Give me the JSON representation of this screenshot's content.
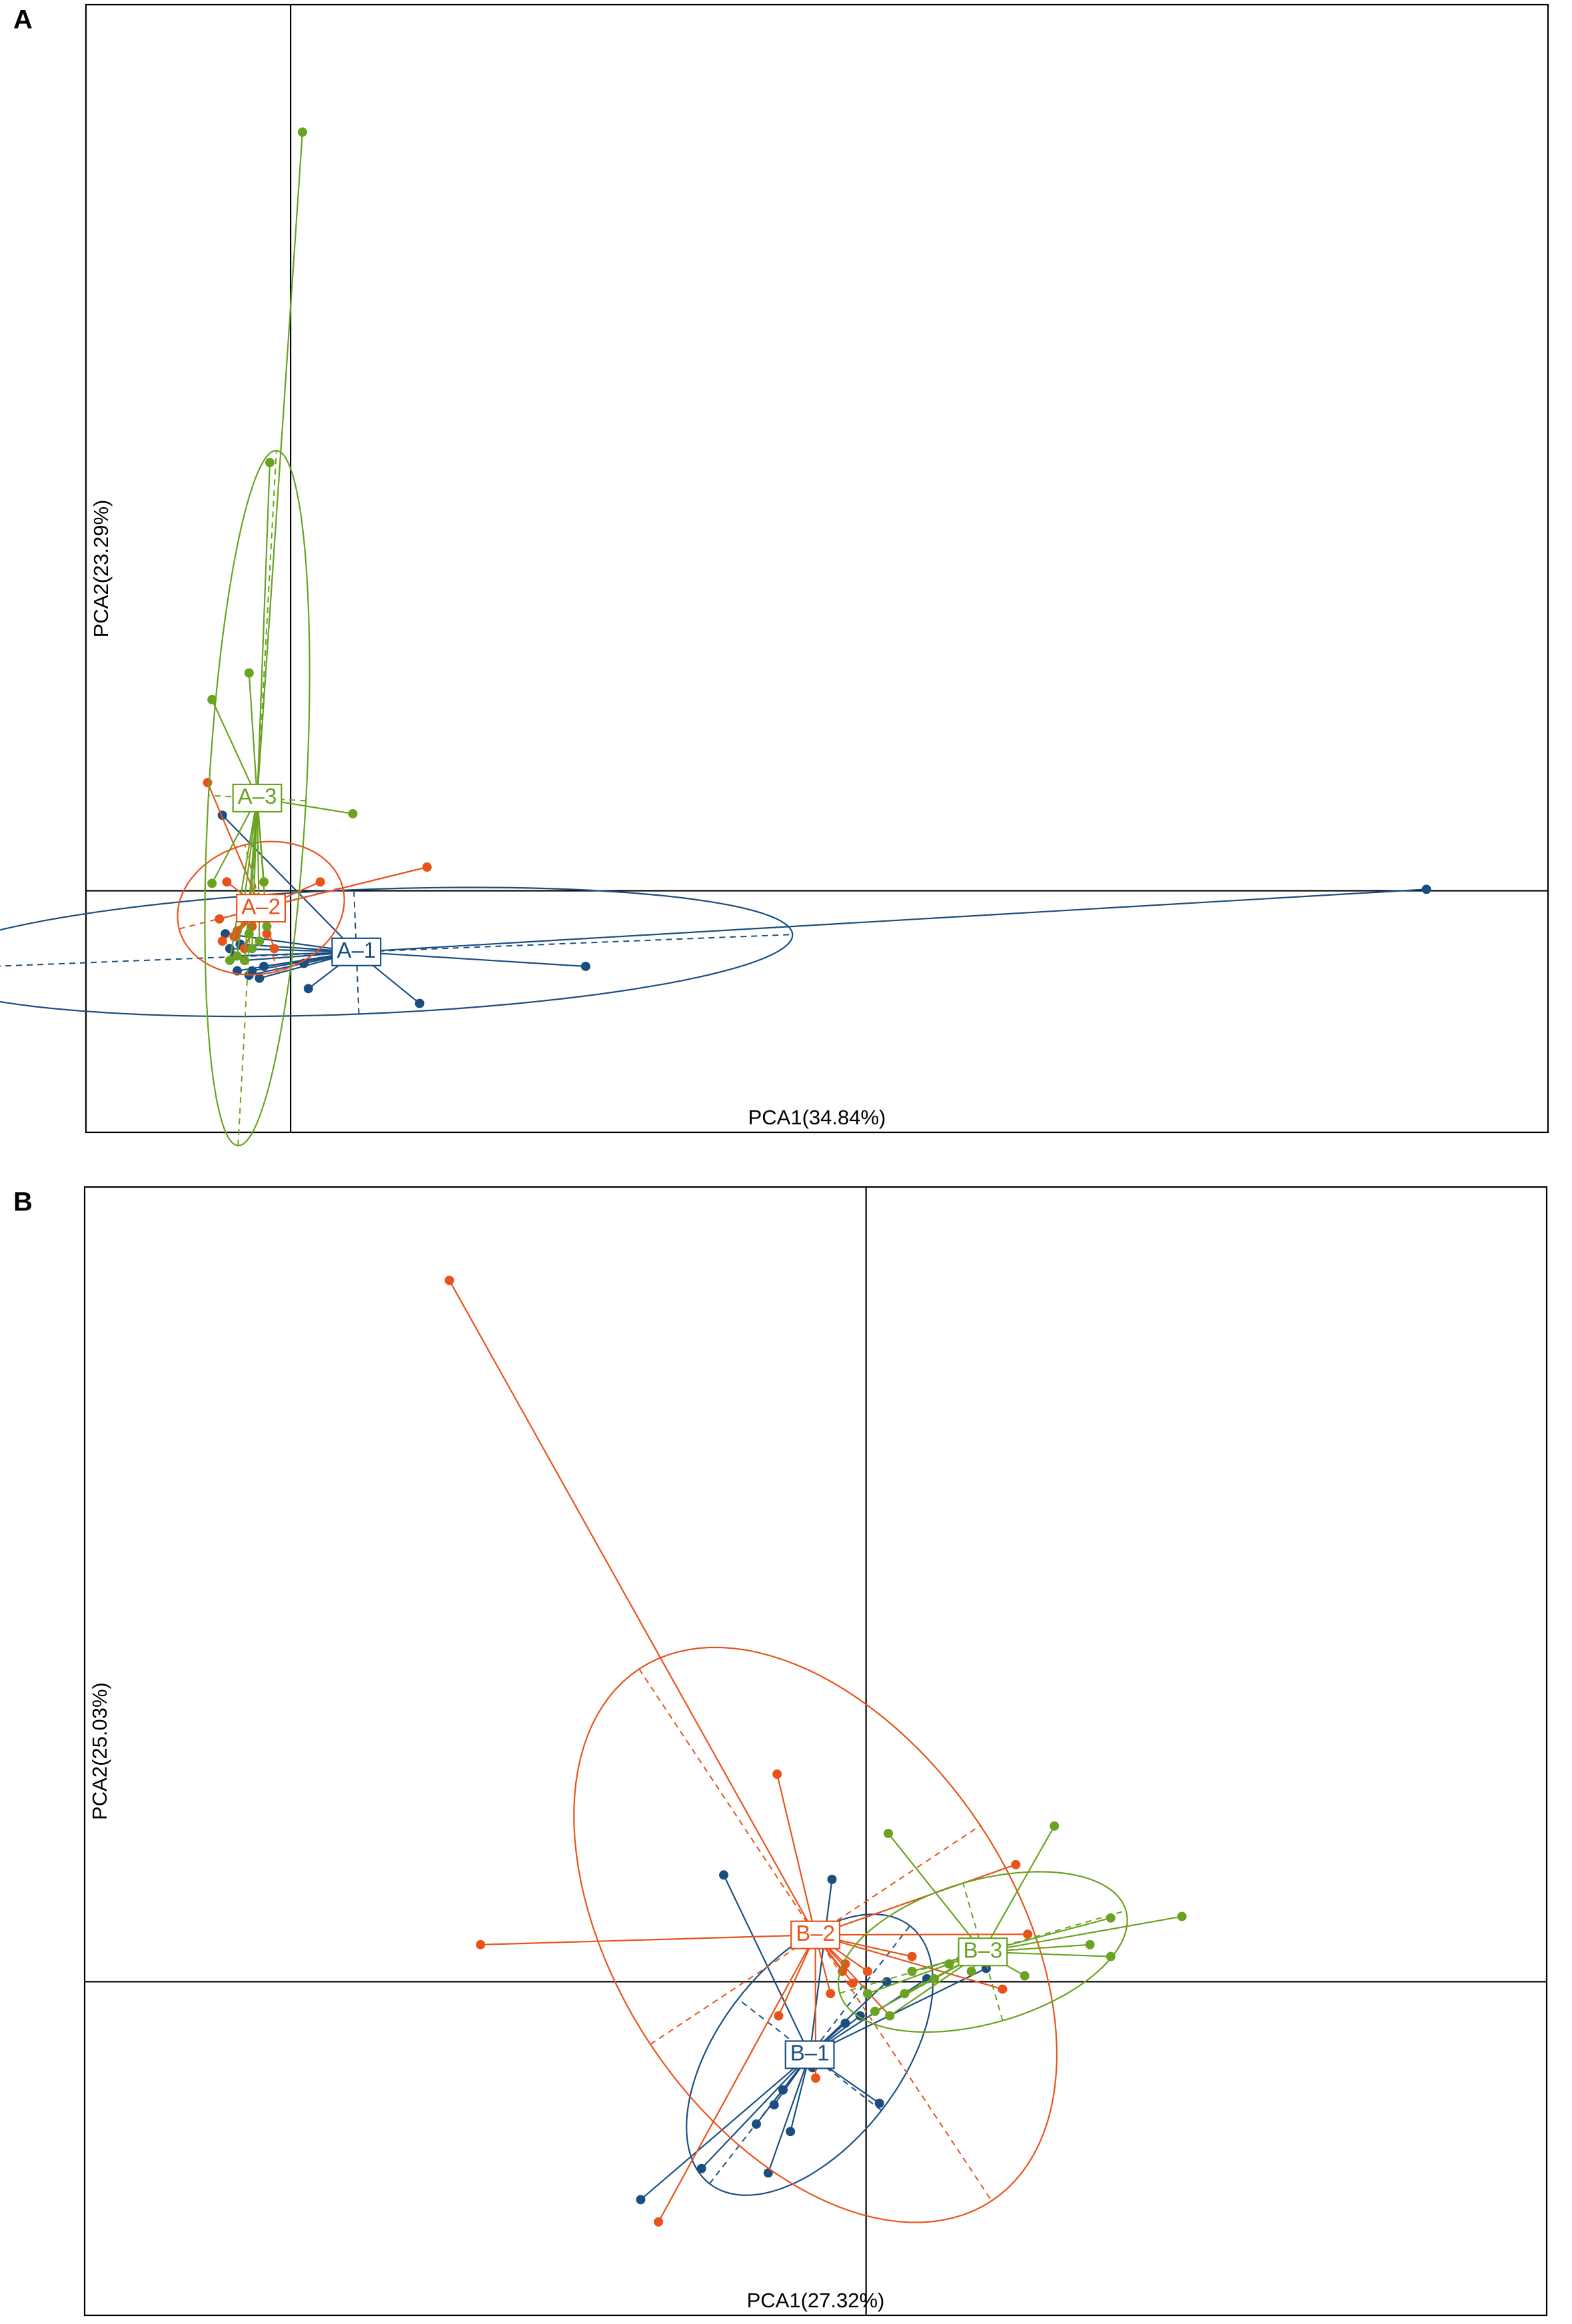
{
  "chart_data": [
    {
      "type": "scatter",
      "panel_label": "A",
      "xlabel": "PCA1(34.84%)",
      "ylabel": "PCA2(23.29%)",
      "xlim": [
        -1.38,
        8.48
      ],
      "ylim": [
        -1.63,
        5.98
      ],
      "series": [
        {
          "name": "A–1",
          "color": "#1a4e80",
          "x": [
            7.66,
            1.99,
            0.87,
            0.12,
            -0.46,
            -0.36,
            -0.21,
            -0.26,
            0.09,
            -0.44,
            -0.38,
            -0.31,
            -0.18,
            -0.41,
            -0.34,
            -0.28
          ],
          "values": [
            0.01,
            -0.51,
            -0.76,
            -0.66,
            0.51,
            -0.54,
            -0.59,
            -0.54,
            -0.49,
            -0.29,
            -0.44,
            -0.47,
            -0.51,
            -0.39,
            -0.36,
            -0.57
          ]
        },
        {
          "name": "A–2",
          "color": "#e8531b",
          "x": [
            -0.56,
            0.92,
            0.2,
            -0.48,
            -0.43,
            -0.38,
            -0.31,
            -0.16,
            -0.26,
            -0.36,
            -0.11,
            -0.21,
            -0.46
          ],
          "values": [
            0.73,
            0.16,
            0.06,
            -0.19,
            0.06,
            -0.31,
            -0.39,
            -0.29,
            -0.24,
            -0.27,
            -0.39,
            -0.11,
            -0.34
          ]
        },
        {
          "name": "A–3",
          "color": "#6aa321",
          "x": [
            0.08,
            -0.14,
            -0.28,
            -0.53,
            0.42,
            -0.53,
            -0.18,
            -0.36,
            -0.31,
            -0.26,
            -0.21,
            -0.41,
            -0.16,
            -0.28
          ],
          "values": [
            5.12,
            2.89,
            1.47,
            1.29,
            0.52,
            0.05,
            0.06,
            -0.44,
            -0.47,
            -0.39,
            -0.34,
            -0.47,
            -0.24,
            -0.29
          ]
        }
      ]
    },
    {
      "type": "scatter",
      "panel_label": "B",
      "xlabel": "PCA1(27.32%)",
      "ylabel": "PCA2(25.03%)",
      "xlim": [
        -5.27,
        4.59
      ],
      "ylim": [
        -2.25,
        5.36
      ],
      "series": [
        {
          "name": "B–1",
          "color": "#1a4e80",
          "x": [
            -0.96,
            -0.23,
            -1.52,
            -1.11,
            -0.66,
            -0.51,
            -0.74,
            -0.62,
            -0.56,
            -0.46,
            0.09,
            0.81,
            0.41,
            -0.04,
            -0.14,
            0.14,
            -0.36
          ],
          "values": [
            0.72,
            0.69,
            -1.47,
            -1.26,
            -1.29,
            -1.01,
            -0.96,
            -0.83,
            -0.73,
            -0.43,
            -0.82,
            0.09,
            0.02,
            -0.23,
            -0.28,
            0.0,
            -0.58
          ]
        },
        {
          "name": "B–2",
          "color": "#e8531b",
          "x": [
            -2.81,
            -2.6,
            -0.6,
            1.01,
            -1.4,
            1.09,
            0.92,
            0.16,
            -0.09,
            -0.16,
            -0.24,
            -0.59,
            -0.34,
            0.01,
            0.31,
            -0.14
          ],
          "values": [
            4.73,
            0.25,
            1.4,
            0.79,
            -1.62,
            0.32,
            -0.05,
            -0.23,
            -0.01,
            0.07,
            -0.08,
            -0.23,
            -0.65,
            0.07,
            0.17,
            0.12
          ]
        },
        {
          "name": "B–3",
          "color": "#6aa321",
          "x": [
            1.27,
            0.15,
            2.13,
            1.65,
            1.65,
            1.51,
            1.07,
            0.31,
            0.16,
            0.06,
            0.56,
            0.46,
            0.71,
            0.64,
            0.01,
            0.26
          ],
          "values": [
            1.05,
            1.0,
            0.44,
            0.43,
            0.17,
            0.25,
            0.04,
            0.07,
            -0.23,
            -0.2,
            0.12,
            0.02,
            0.07,
            0.15,
            -0.08,
            -0.08
          ]
        }
      ]
    }
  ]
}
